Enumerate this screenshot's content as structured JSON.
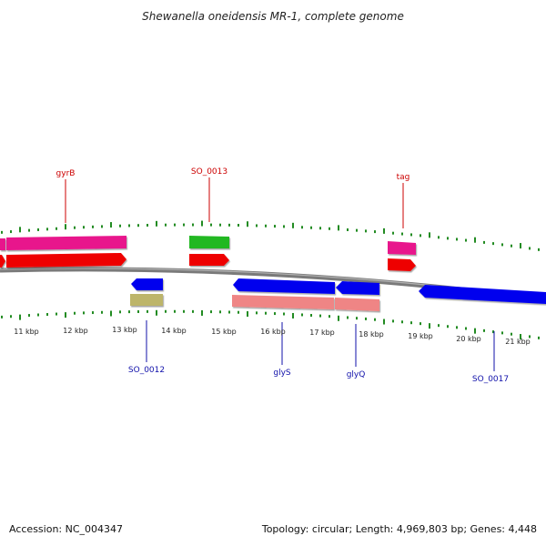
{
  "title": "Shewanella oneidensis MR-1, complete genome",
  "footer": {
    "accession": "Accession: NC_004347",
    "summary": "Topology: circular; Length: 4,969,803 bp; Genes: 4,448"
  },
  "colors": {
    "backbone": "#808080",
    "tick": "#228b22",
    "top_label": "#cc0000",
    "bottom_label": "#1010aa"
  },
  "scale_labels": [
    "11 kbp",
    "12 kbp",
    "13 kbp",
    "14 kbp",
    "15 kbp",
    "16 kbp",
    "17 kbp",
    "18 kbp",
    "19 kbp",
    "20 kbp",
    "21 kbp"
  ],
  "gene_labels_top": [
    "gyrB",
    "SO_0013",
    "tag"
  ],
  "gene_labels_bottom": [
    "SO_0012",
    "glyS",
    "glyQ",
    "SO_0017"
  ]
}
